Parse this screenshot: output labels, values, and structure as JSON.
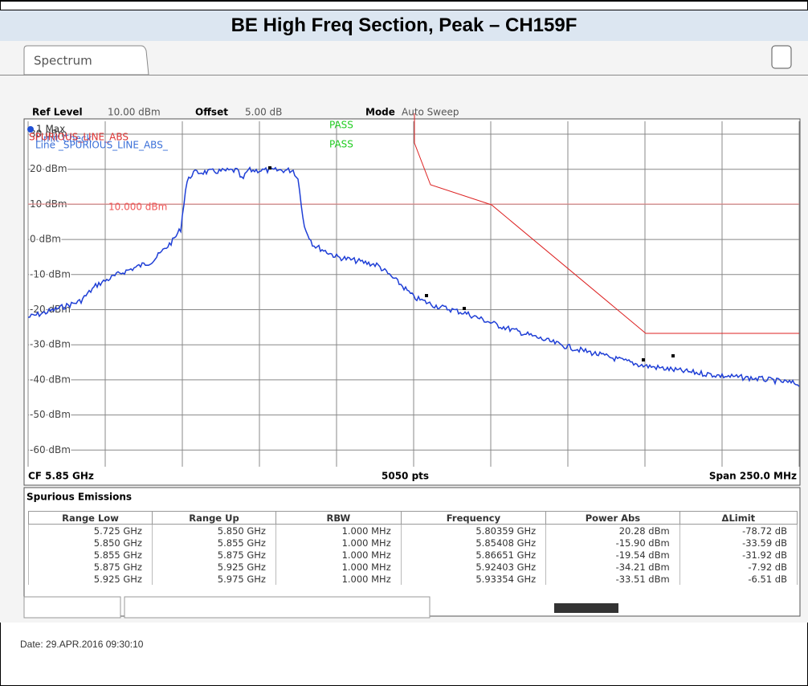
{
  "header": {
    "title": "BE High Freq Section, Peak – CH159F"
  },
  "tab": "Spectrum",
  "info": {
    "ref_level_label": "Ref Level",
    "ref_level": "10.00 dBm",
    "offset_label": "Offset",
    "offset": "5.00 dB",
    "mode_label": "Mode",
    "mode": "Auto Sweep"
  },
  "plot": {
    "y_labels": [
      "30 dBm",
      "20 dBm",
      "10 dBm",
      "0 dBm",
      "-10 dBm",
      "-20 dBm",
      "-30 dBm",
      "-40 dBm",
      "-50 dBm",
      "-60 dBm"
    ],
    "trace_label": "1 Max",
    "limit_name": "SPURIOUS_LINE_ABS",
    "limit_check": "Limit Check",
    "line_label": "Line _SPURIOUS_LINE_ABS_",
    "pass": [
      "PASS",
      "PASS"
    ],
    "ref_line_label": "10.000 dBm",
    "footer": {
      "center_freq": "CF 5.85 GHz",
      "points": "5050 pts",
      "span": "Span 250.0 MHz"
    }
  },
  "table": {
    "title": "Spurious Emissions",
    "columns": [
      "Range Low",
      "Range Up",
      "RBW",
      "Frequency",
      "Power Abs",
      "ΔLimit"
    ],
    "rows": [
      [
        "5.725 GHz",
        "5.850 GHz",
        "1.000 MHz",
        "5.80359 GHz",
        "20.28 dBm",
        "-78.72 dB"
      ],
      [
        "5.850 GHz",
        "5.855 GHz",
        "1.000 MHz",
        "5.85408 GHz",
        "-15.90 dBm",
        "-33.59 dB"
      ],
      [
        "5.855 GHz",
        "5.875 GHz",
        "1.000 MHz",
        "5.86651 GHz",
        "-19.54 dBm",
        "-31.92 dB"
      ],
      [
        "5.875 GHz",
        "5.925 GHz",
        "1.000 MHz",
        "5.92403 GHz",
        "-34.21 dBm",
        "-7.92 dB"
      ],
      [
        "5.925 GHz",
        "5.975 GHz",
        "1.000 MHz",
        "5.93354 GHz",
        "-33.51 dBm",
        "-6.51 dB"
      ]
    ]
  },
  "date": "Date: 29.APR.2016  09:30:10"
}
